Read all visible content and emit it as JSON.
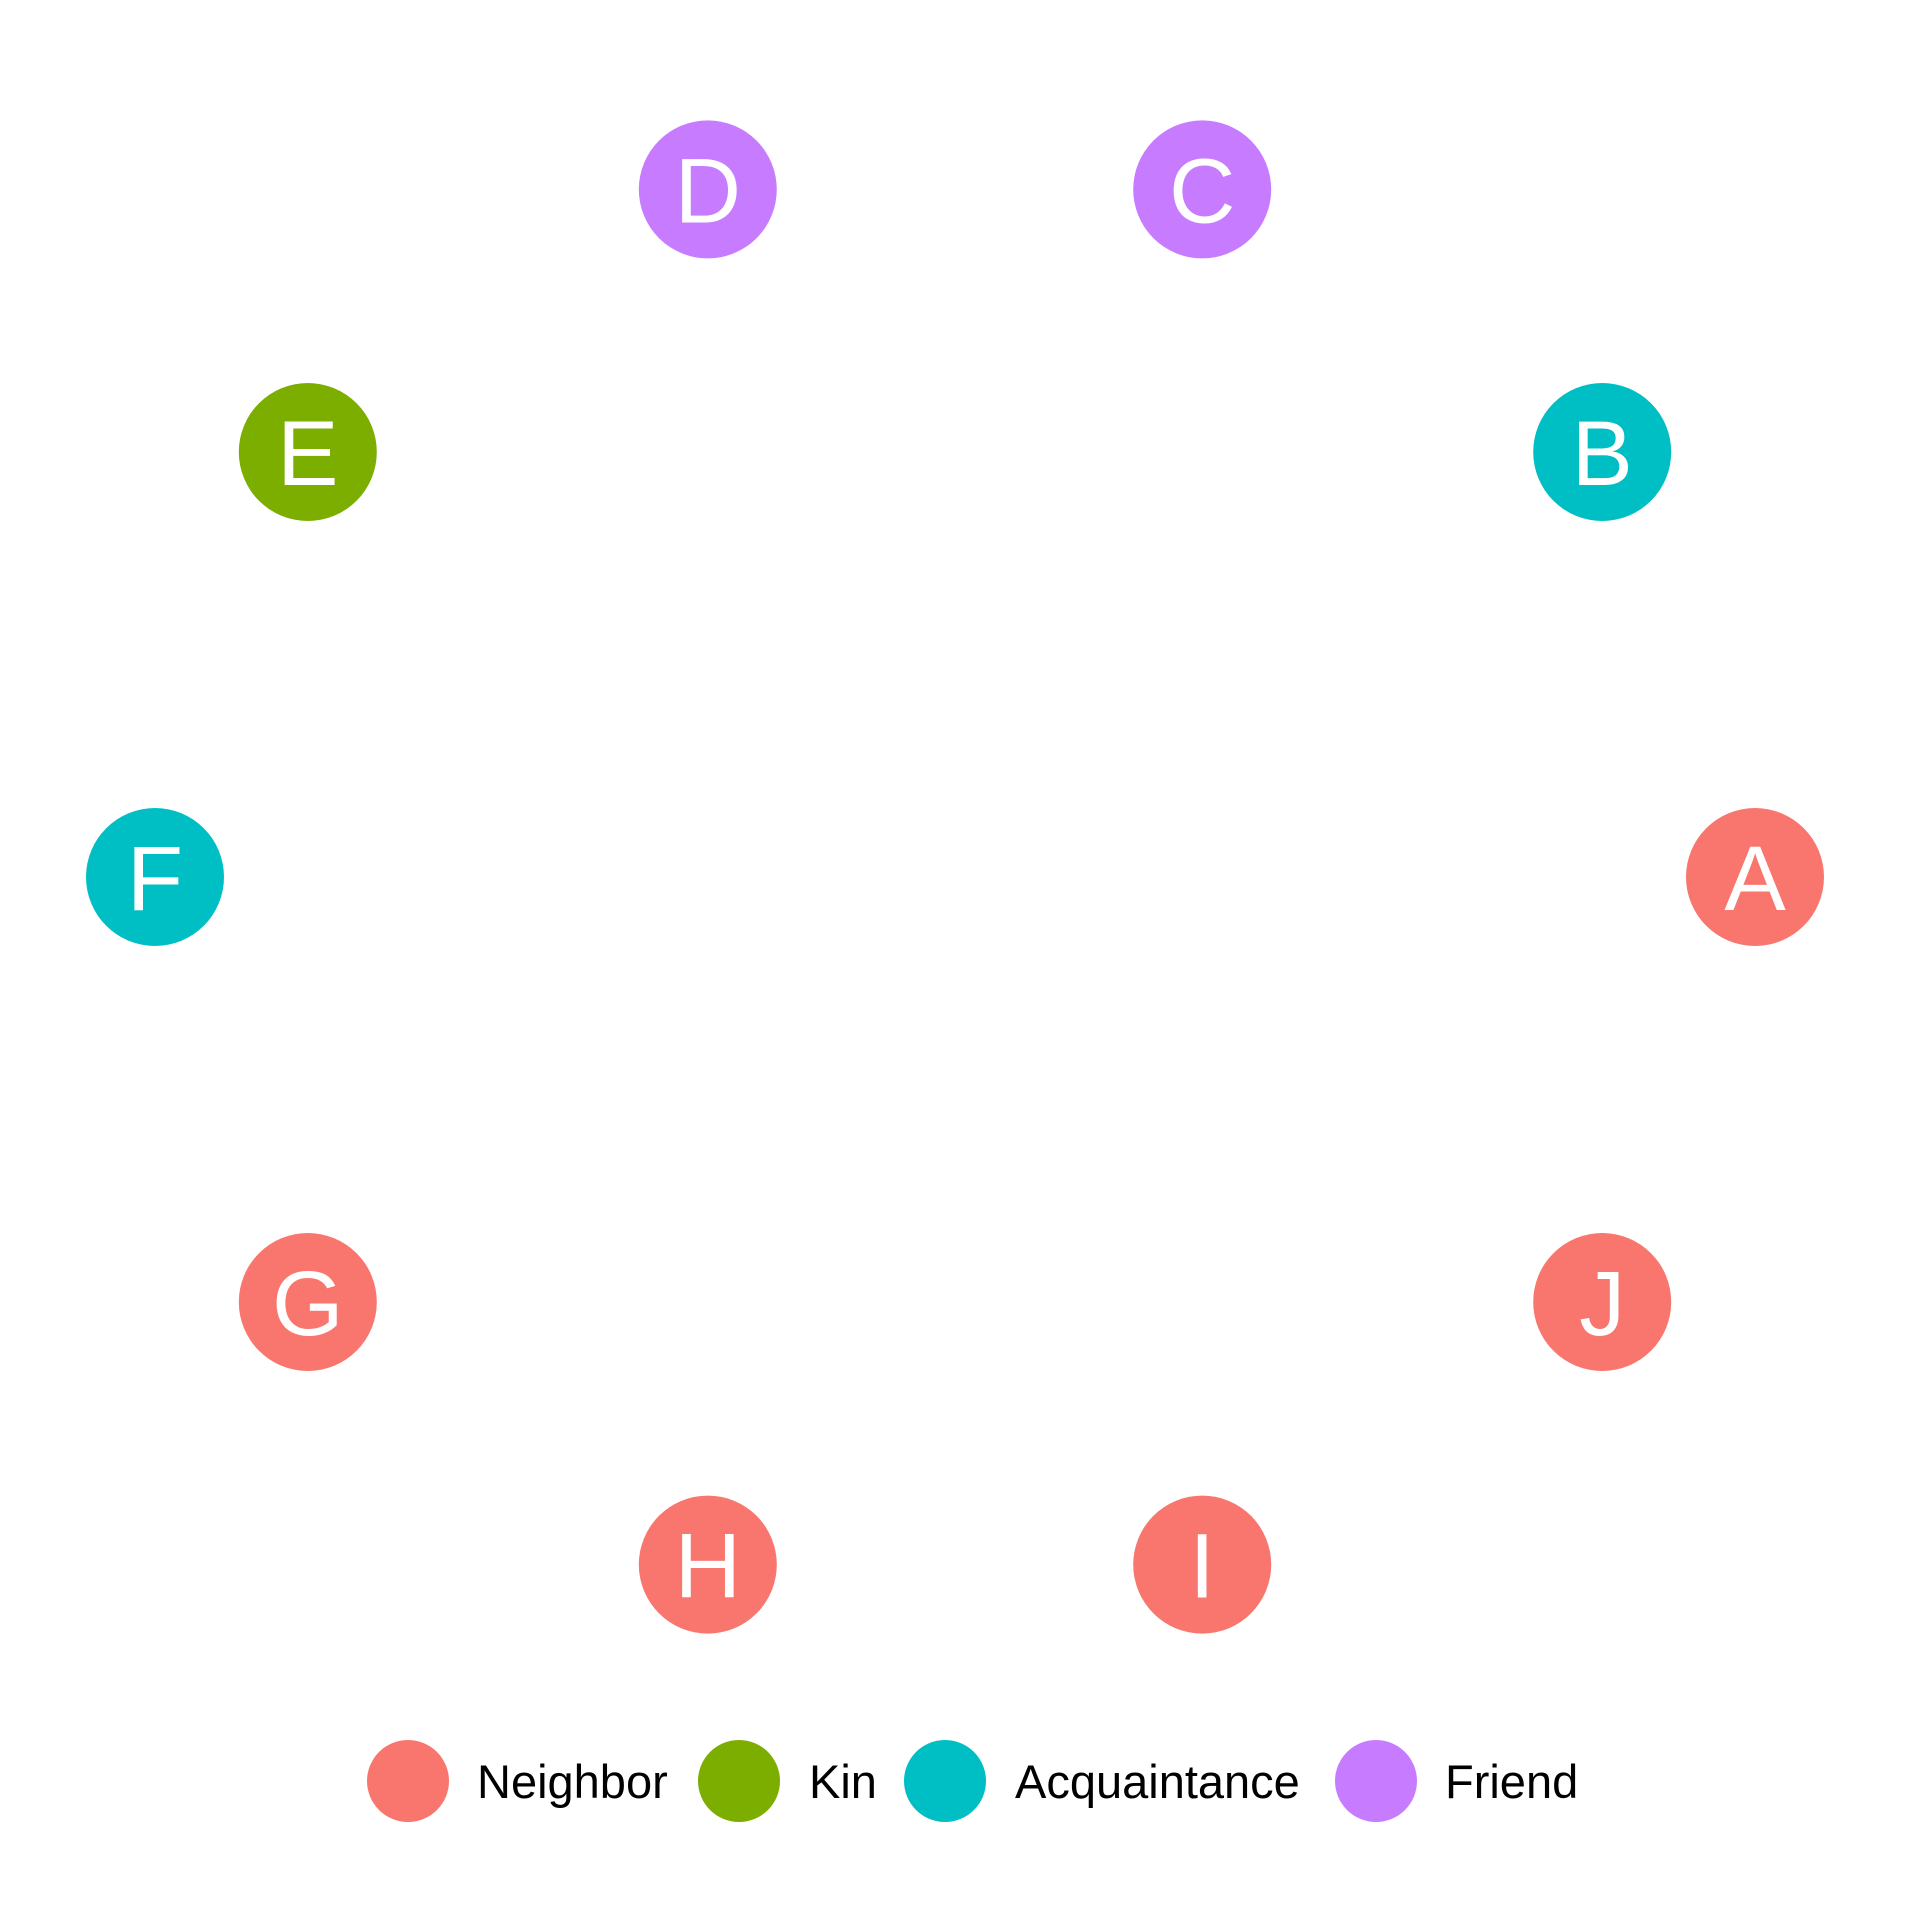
{
  "categories": [
    {
      "key": "neighbor",
      "label": "Neighbor",
      "color": "#F8766D"
    },
    {
      "key": "kin",
      "label": "Kin",
      "color": "#7CAE00"
    },
    {
      "key": "acquaintance",
      "label": "Acquaintance",
      "color": "#00BFC4"
    },
    {
      "key": "friend",
      "label": "Friend",
      "color": "#C77CFF"
    }
  ],
  "nodes": [
    {
      "label": "A",
      "category": "neighbor"
    },
    {
      "label": "B",
      "category": "acquaintance"
    },
    {
      "label": "C",
      "category": "friend"
    },
    {
      "label": "D",
      "category": "friend"
    },
    {
      "label": "E",
      "category": "kin"
    },
    {
      "label": "F",
      "category": "acquaintance"
    },
    {
      "label": "G",
      "category": "neighbor"
    },
    {
      "label": "H",
      "category": "neighbor"
    },
    {
      "label": "I",
      "category": "neighbor"
    },
    {
      "label": "J",
      "category": "neighbor"
    }
  ],
  "legend": {
    "position": "bottom"
  }
}
